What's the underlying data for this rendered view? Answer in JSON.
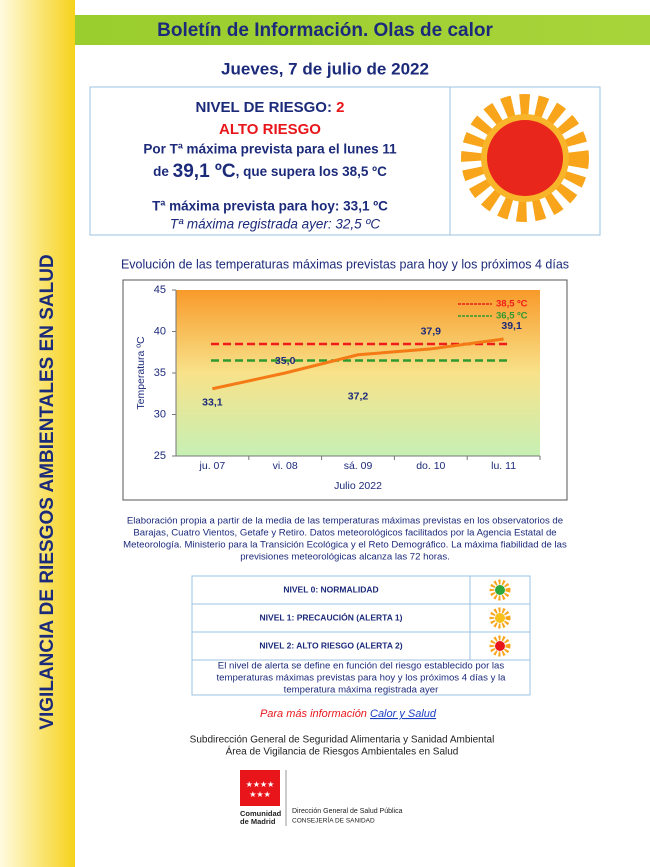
{
  "sidebar": "VIGILANCIA DE RIESGOS AMBIENTALES EN SALUD",
  "header": {
    "title": "Boletín de Información. Olas de calor",
    "date": "Jueves, 7 de julio de 2022"
  },
  "risk": {
    "label": "NIVEL DE RIESGO:",
    "level": "2",
    "level_name": "ALTO RIESGO",
    "forecast_line": "Por Tª máxima prevista para el lunes 11",
    "forecast_prefix": "de",
    "forecast_value": "39,1 ºC",
    "forecast_suffix": ", que supera los 38,5 ºC",
    "today": "Tª máxima prevista para hoy: 33,1 ºC",
    "yesterday": "Tª máxima registrada ayer: 32,5 ºC"
  },
  "chart_data": {
    "type": "line",
    "title": "Evolución de las temperaturas máximas previstas para hoy y los próximos 4 días",
    "x_label": "Julio  2022",
    "y_label": "Temperatura ºC",
    "categories": [
      "ju. 07",
      "vi. 08",
      "sá. 09",
      "do. 10",
      "lu. 11"
    ],
    "series": [
      {
        "color": "#f47a16",
        "values": [
          33.1,
          35.0,
          37.2,
          37.9,
          39.1
        ],
        "value_labels": [
          "33,1",
          "35,0",
          "37,2",
          "37,9",
          "39,1"
        ]
      }
    ],
    "thresholds": [
      {
        "name": "38,5 ºC",
        "value": 38.5,
        "color": "#f01c1c"
      },
      {
        "name": "36,5 ºC",
        "value": 36.5,
        "color": "#2f9a2f"
      }
    ],
    "ylim": [
      25,
      45
    ],
    "yticks": [
      25,
      30,
      35,
      40,
      45
    ]
  },
  "note": [
    "Elaboración propia a partir de la media de las temperaturas máximas previstas en los observatorios de",
    "Barajas, Cuatro Vientos, Getafe y Retiro. Datos meteorológicos facilitados por la Agencia Estatal de",
    "Meteorología. Ministerio para la Transición Ecológica y el Reto Demográfico. La máxima fiabilidad de las",
    "previsiones meteorológicas alcanza las 72 horas."
  ],
  "levels": {
    "rows": [
      "NIVEL 0: NORMALIDAD",
      "NIVEL 1: PRECAUCIÓN (ALERTA 1)",
      "NIVEL 2: ALTO RIESGO (ALERTA 2)"
    ],
    "explanation": [
      "El nivel de alerta se define en función del riesgo establecido por las",
      "temperaturas máximas previstas para hoy y los próximos 4 días y la",
      "temperatura máxima registrada ayer"
    ]
  },
  "more_info": {
    "text": "Para más información",
    "link": "Calor y Salud"
  },
  "footer": {
    "lines": [
      "Subdirección General de Seguridad Alimentaria y Sanidad Ambiental",
      "Área de Vigilancia de Riesgos Ambientales en Salud"
    ],
    "logo": [
      "Comunidad",
      "de Madrid"
    ],
    "org": [
      "Dirección General de Salud Pública",
      "CONSEJERÍA DE SANIDAD"
    ]
  }
}
